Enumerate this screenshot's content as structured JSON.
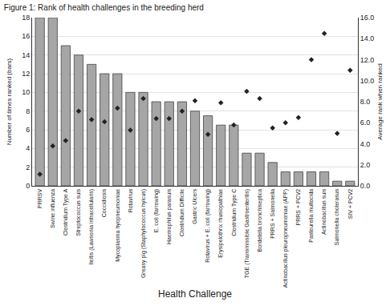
{
  "chart_data": {
    "type": "bar",
    "title": "Figure 1: Rank of health challenges in the breeding herd",
    "x_label": "Health Challenge",
    "categories": [
      "PRRSV",
      "Swine influenza",
      "Clostridium Type A",
      "Streptococcus suis",
      "Ileitis (Lawsonia intracellularis)",
      "Coccidiosis",
      "Mycoplasma hyopneumoniae",
      "Rotavirus",
      "Greasy pig (Staphylococcus hyicus)",
      "E. coli (farrowing)",
      "Haemophilus parasuis",
      "Clostridium Difficile",
      "Gastric Ulcers",
      "Rotavirus + E. coli (farrowing)",
      "Erysipelothrix rhusiopathiae",
      "Clostridium Type C",
      "TGE (Transmissible Gastroenteritis)",
      "Bordetella bronchiseptica",
      "PRRS + Salmonella",
      "Actinobacillus pleuropneumoniae (APP)",
      "PRRS + PCV2",
      "Pasteurella multocida",
      "Actinobacillus suis",
      "Salmonella cholerasus",
      "SIV + PCV2"
    ],
    "series": [
      {
        "name": "Number of times ranked (bars)",
        "type": "bar",
        "color": "#a6a6a6",
        "values": [
          18,
          18,
          15,
          14,
          13,
          12,
          12,
          10,
          10,
          9,
          9,
          9,
          8,
          7.5,
          6.5,
          6.5,
          3.5,
          3.5,
          2.5,
          1.5,
          1.5,
          1.5,
          1.5,
          0.5,
          0.5
        ]
      },
      {
        "name": "Average rank when ranked",
        "type": "scatter",
        "marker": "diamond",
        "color": "#222222",
        "axis": "y2",
        "values": [
          1.1,
          3.8,
          4.3,
          7.1,
          6.3,
          6.1,
          7.4,
          5.3,
          8.3,
          6.4,
          6.4,
          7.1,
          8.1,
          4.9,
          7.9,
          5.8,
          9.0,
          8.3,
          5.5,
          6.0,
          6.5,
          12.0,
          14.5,
          5.0,
          11.0
        ]
      }
    ],
    "ylim": [
      0,
      18
    ],
    "yticks": [
      0,
      2,
      4,
      6,
      8,
      10,
      12,
      14,
      16,
      18
    ],
    "y2lim": [
      0,
      16
    ],
    "y2ticks": [
      {
        "value": 0,
        "label": "0.0"
      },
      {
        "value": 2,
        "label": "2.0"
      },
      {
        "value": 4,
        "label": "4.0"
      },
      {
        "value": 6,
        "label": "6.0"
      },
      {
        "value": 8,
        "label": "8.0"
      },
      {
        "value": 10,
        "label": "10.0"
      },
      {
        "value": 12,
        "label": "12.0"
      },
      {
        "value": 14,
        "label": "14.0"
      },
      {
        "value": 16,
        "label": "16.0"
      }
    ],
    "grid": true
  }
}
